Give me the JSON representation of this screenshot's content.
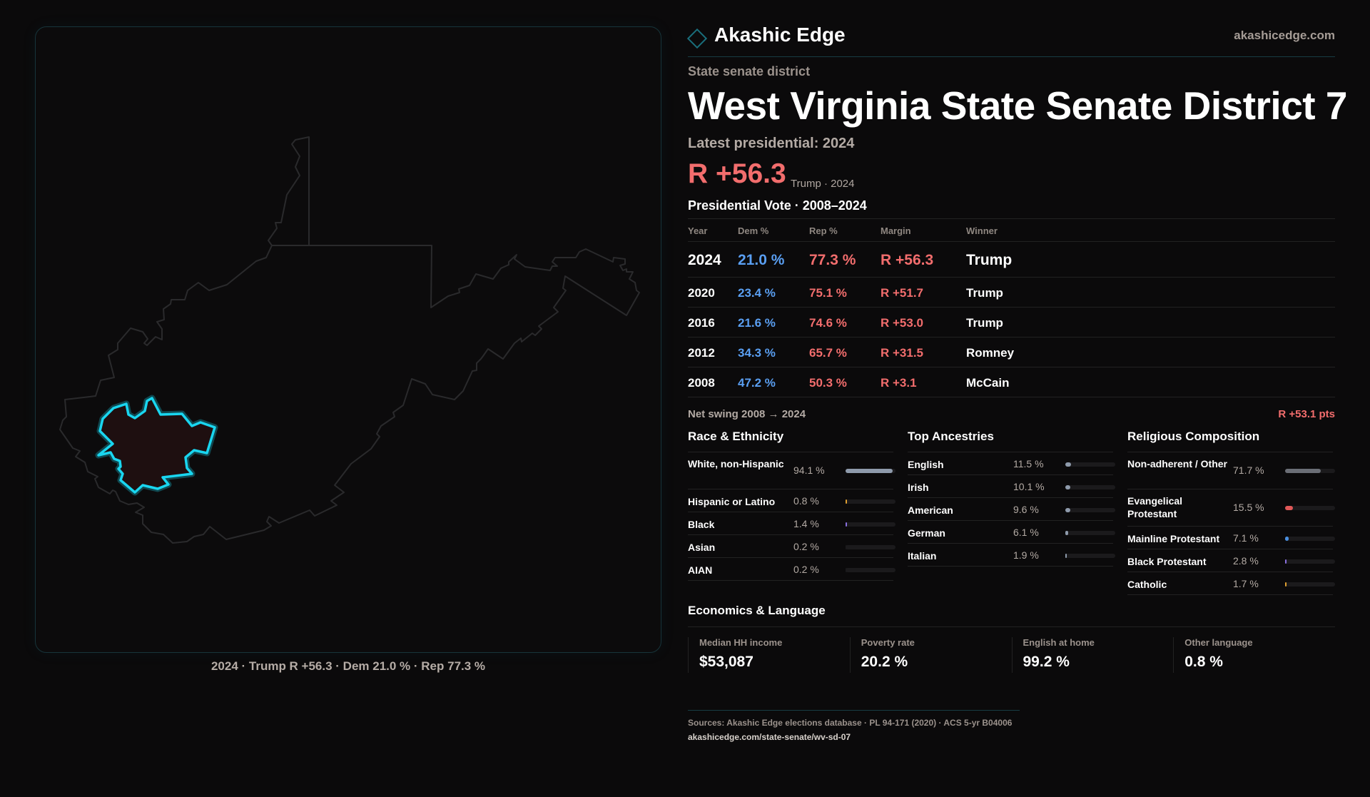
{
  "map": {
    "caption": "2024 · Trump R +56.3 · Dem 21.0 % · Rep 77.3 %",
    "highlight_color": "#19d6f0",
    "district_fill": "#1e0f10"
  },
  "header": {
    "brand": "Akashic Edge",
    "site": "akashicedge.com"
  },
  "kicker": "State senate district",
  "title": "West Virginia State Senate District 7",
  "latest": {
    "label": "Latest presidential: 2024",
    "margin": "R +56.3",
    "sub": "Trump · 2024"
  },
  "presidential": {
    "title": "Presidential Vote · 2008–2024",
    "columns": [
      "Year",
      "Dem %",
      "Rep %",
      "Margin",
      "Winner"
    ],
    "rows": [
      {
        "year": "2024",
        "dem": "21.0 %",
        "rep": "77.3 %",
        "margin": "R +56.3",
        "winner": "Trump"
      },
      {
        "year": "2020",
        "dem": "23.4 %",
        "rep": "75.1 %",
        "margin": "R +51.7",
        "winner": "Trump"
      },
      {
        "year": "2016",
        "dem": "21.6 %",
        "rep": "74.6 %",
        "margin": "R +53.0",
        "winner": "Trump"
      },
      {
        "year": "2012",
        "dem": "34.3 %",
        "rep": "65.7 %",
        "margin": "R +31.5",
        "winner": "Romney"
      },
      {
        "year": "2008",
        "dem": "47.2 %",
        "rep": "50.3 %",
        "margin": "R +3.1",
        "winner": "McCain"
      }
    ],
    "swing_label": "Net swing 2008 → 2024",
    "swing_value": "R +53.1 pts"
  },
  "sections": [
    {
      "title": "Race & Ethnicity",
      "items": [
        {
          "label": "White, non-Hispanic",
          "value": "94.1 %",
          "pct": 94.1,
          "color": "#8e9aab",
          "tall": true
        },
        {
          "label": "Hispanic or Latino",
          "value": "0.8 %",
          "pct": 0.8,
          "color": "#e0a030"
        },
        {
          "label": "Black",
          "value": "1.4 %",
          "pct": 1.4,
          "color": "#8a70e0"
        },
        {
          "label": "Asian",
          "value": "0.2 %",
          "pct": 0.2,
          "color": "#1b1a1c"
        },
        {
          "label": "AIAN",
          "value": "0.2 %",
          "pct": 0.2,
          "color": "#1b1a1c"
        }
      ]
    },
    {
      "title": "Top Ancestries",
      "items": [
        {
          "label": "English",
          "value": "11.5 %",
          "pct": 11.5,
          "color": "#8e9aab"
        },
        {
          "label": "Irish",
          "value": "10.1 %",
          "pct": 10.1,
          "color": "#8e9aab"
        },
        {
          "label": "American",
          "value": "9.6 %",
          "pct": 9.6,
          "color": "#8e9aab"
        },
        {
          "label": "German",
          "value": "6.1 %",
          "pct": 6.1,
          "color": "#8e9aab"
        },
        {
          "label": "Italian",
          "value": "1.9 %",
          "pct": 1.9,
          "color": "#8e9aab"
        }
      ]
    },
    {
      "title": "Religious Composition",
      "items": [
        {
          "label": "Non-adherent / Other",
          "value": "71.7 %",
          "pct": 71.7,
          "color": "#6b6e76",
          "tall": true
        },
        {
          "label": "Evangelical Protestant",
          "value": "15.5 %",
          "pct": 15.5,
          "color": "#e05858",
          "tall": true
        },
        {
          "label": "Mainline Protestant",
          "value": "7.1 %",
          "pct": 7.1,
          "color": "#4a8fe0"
        },
        {
          "label": "Black Protestant",
          "value": "2.8 %",
          "pct": 2.8,
          "color": "#8a70e0"
        },
        {
          "label": "Catholic",
          "value": "1.7 %",
          "pct": 1.7,
          "color": "#e0a030"
        }
      ]
    }
  ],
  "economics": {
    "title": "Economics & Language",
    "stats": [
      {
        "label": "Median HH income",
        "value": "$53,087"
      },
      {
        "label": "Poverty rate",
        "value": "20.2 %"
      },
      {
        "label": "English at home",
        "value": "99.2 %"
      },
      {
        "label": "Other language",
        "value": "0.8 %"
      }
    ]
  },
  "footer": {
    "sources": "Sources: Akashic Edge elections database · PL 94-171 (2020) · ACS 5-yr B04006",
    "url": "akashicedge.com/state-senate/wv-sd-07"
  }
}
